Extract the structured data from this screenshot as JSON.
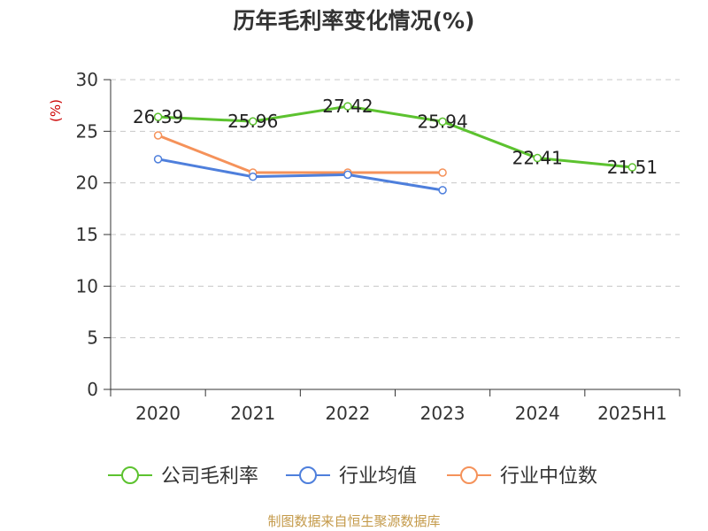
{
  "chart_data": {
    "type": "line",
    "title": "历年毛利率变化情况(%)",
    "ylabel": "(%)",
    "xlabel": "",
    "categories": [
      "2020",
      "2021",
      "2022",
      "2023",
      "2024",
      "2025H1"
    ],
    "ylim": [
      0,
      30
    ],
    "yticks": [
      0,
      5,
      10,
      15,
      20,
      25,
      30
    ],
    "grid": true,
    "legend_position": "bottom",
    "series": [
      {
        "name": "公司毛利率",
        "color": "#5cc22f",
        "values": [
          26.39,
          25.96,
          27.42,
          25.94,
          22.41,
          21.51
        ],
        "labels": [
          "26.39",
          "25.96",
          "27.42",
          "25.94",
          "22.41",
          "21.51"
        ]
      },
      {
        "name": "行业均值",
        "color": "#4e7fdc",
        "values": [
          22.3,
          20.6,
          20.8,
          19.3,
          null,
          null
        ]
      },
      {
        "name": "行业中位数",
        "color": "#f5925a",
        "values": [
          24.6,
          21.0,
          21.0,
          21.0,
          null,
          null
        ]
      }
    ]
  },
  "source": "制图数据来自恒生聚源数据库"
}
